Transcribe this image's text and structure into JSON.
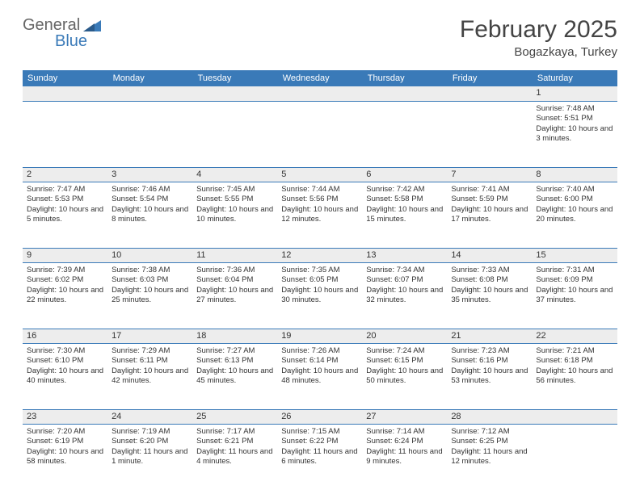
{
  "brand": {
    "name1": "General",
    "name2": "Blue"
  },
  "title": {
    "month": "February 2025",
    "location": "Bogazkaya, Turkey"
  },
  "colors": {
    "accent": "#3a7ab8",
    "header_bg": "#3a7ab8",
    "daynum_bg": "#ededed",
    "text": "#333333"
  },
  "weekdays": [
    "Sunday",
    "Monday",
    "Tuesday",
    "Wednesday",
    "Thursday",
    "Friday",
    "Saturday"
  ],
  "weeks": [
    [
      null,
      null,
      null,
      null,
      null,
      null,
      {
        "n": "1",
        "sr": "Sunrise: 7:48 AM",
        "ss": "Sunset: 5:51 PM",
        "dl": "Daylight: 10 hours and 3 minutes."
      }
    ],
    [
      {
        "n": "2",
        "sr": "Sunrise: 7:47 AM",
        "ss": "Sunset: 5:53 PM",
        "dl": "Daylight: 10 hours and 5 minutes."
      },
      {
        "n": "3",
        "sr": "Sunrise: 7:46 AM",
        "ss": "Sunset: 5:54 PM",
        "dl": "Daylight: 10 hours and 8 minutes."
      },
      {
        "n": "4",
        "sr": "Sunrise: 7:45 AM",
        "ss": "Sunset: 5:55 PM",
        "dl": "Daylight: 10 hours and 10 minutes."
      },
      {
        "n": "5",
        "sr": "Sunrise: 7:44 AM",
        "ss": "Sunset: 5:56 PM",
        "dl": "Daylight: 10 hours and 12 minutes."
      },
      {
        "n": "6",
        "sr": "Sunrise: 7:42 AM",
        "ss": "Sunset: 5:58 PM",
        "dl": "Daylight: 10 hours and 15 minutes."
      },
      {
        "n": "7",
        "sr": "Sunrise: 7:41 AM",
        "ss": "Sunset: 5:59 PM",
        "dl": "Daylight: 10 hours and 17 minutes."
      },
      {
        "n": "8",
        "sr": "Sunrise: 7:40 AM",
        "ss": "Sunset: 6:00 PM",
        "dl": "Daylight: 10 hours and 20 minutes."
      }
    ],
    [
      {
        "n": "9",
        "sr": "Sunrise: 7:39 AM",
        "ss": "Sunset: 6:02 PM",
        "dl": "Daylight: 10 hours and 22 minutes."
      },
      {
        "n": "10",
        "sr": "Sunrise: 7:38 AM",
        "ss": "Sunset: 6:03 PM",
        "dl": "Daylight: 10 hours and 25 minutes."
      },
      {
        "n": "11",
        "sr": "Sunrise: 7:36 AM",
        "ss": "Sunset: 6:04 PM",
        "dl": "Daylight: 10 hours and 27 minutes."
      },
      {
        "n": "12",
        "sr": "Sunrise: 7:35 AM",
        "ss": "Sunset: 6:05 PM",
        "dl": "Daylight: 10 hours and 30 minutes."
      },
      {
        "n": "13",
        "sr": "Sunrise: 7:34 AM",
        "ss": "Sunset: 6:07 PM",
        "dl": "Daylight: 10 hours and 32 minutes."
      },
      {
        "n": "14",
        "sr": "Sunrise: 7:33 AM",
        "ss": "Sunset: 6:08 PM",
        "dl": "Daylight: 10 hours and 35 minutes."
      },
      {
        "n": "15",
        "sr": "Sunrise: 7:31 AM",
        "ss": "Sunset: 6:09 PM",
        "dl": "Daylight: 10 hours and 37 minutes."
      }
    ],
    [
      {
        "n": "16",
        "sr": "Sunrise: 7:30 AM",
        "ss": "Sunset: 6:10 PM",
        "dl": "Daylight: 10 hours and 40 minutes."
      },
      {
        "n": "17",
        "sr": "Sunrise: 7:29 AM",
        "ss": "Sunset: 6:11 PM",
        "dl": "Daylight: 10 hours and 42 minutes."
      },
      {
        "n": "18",
        "sr": "Sunrise: 7:27 AM",
        "ss": "Sunset: 6:13 PM",
        "dl": "Daylight: 10 hours and 45 minutes."
      },
      {
        "n": "19",
        "sr": "Sunrise: 7:26 AM",
        "ss": "Sunset: 6:14 PM",
        "dl": "Daylight: 10 hours and 48 minutes."
      },
      {
        "n": "20",
        "sr": "Sunrise: 7:24 AM",
        "ss": "Sunset: 6:15 PM",
        "dl": "Daylight: 10 hours and 50 minutes."
      },
      {
        "n": "21",
        "sr": "Sunrise: 7:23 AM",
        "ss": "Sunset: 6:16 PM",
        "dl": "Daylight: 10 hours and 53 minutes."
      },
      {
        "n": "22",
        "sr": "Sunrise: 7:21 AM",
        "ss": "Sunset: 6:18 PM",
        "dl": "Daylight: 10 hours and 56 minutes."
      }
    ],
    [
      {
        "n": "23",
        "sr": "Sunrise: 7:20 AM",
        "ss": "Sunset: 6:19 PM",
        "dl": "Daylight: 10 hours and 58 minutes."
      },
      {
        "n": "24",
        "sr": "Sunrise: 7:19 AM",
        "ss": "Sunset: 6:20 PM",
        "dl": "Daylight: 11 hours and 1 minute."
      },
      {
        "n": "25",
        "sr": "Sunrise: 7:17 AM",
        "ss": "Sunset: 6:21 PM",
        "dl": "Daylight: 11 hours and 4 minutes."
      },
      {
        "n": "26",
        "sr": "Sunrise: 7:15 AM",
        "ss": "Sunset: 6:22 PM",
        "dl": "Daylight: 11 hours and 6 minutes."
      },
      {
        "n": "27",
        "sr": "Sunrise: 7:14 AM",
        "ss": "Sunset: 6:24 PM",
        "dl": "Daylight: 11 hours and 9 minutes."
      },
      {
        "n": "28",
        "sr": "Sunrise: 7:12 AM",
        "ss": "Sunset: 6:25 PM",
        "dl": "Daylight: 11 hours and 12 minutes."
      },
      null
    ]
  ]
}
